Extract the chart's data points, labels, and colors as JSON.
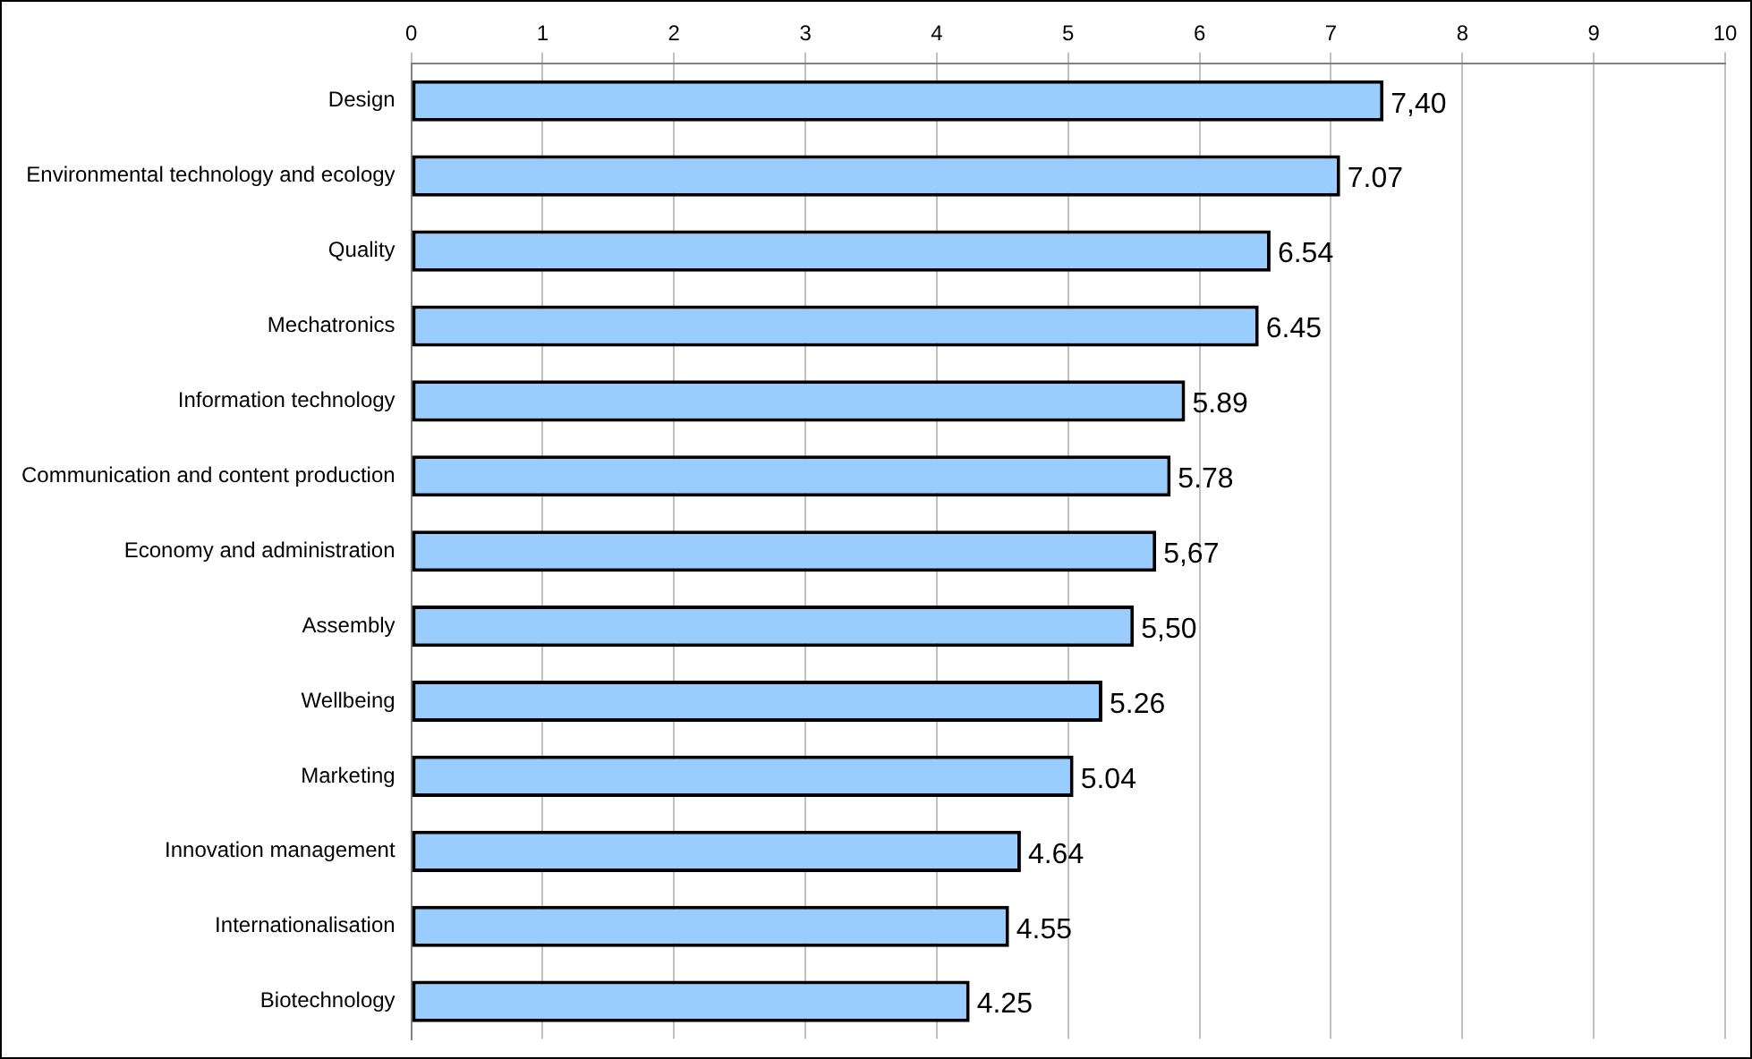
{
  "chart_data": {
    "type": "bar",
    "orientation": "horizontal",
    "categories": [
      "Design",
      "Environmental technology and ecology",
      "Quality",
      "Mechatronics",
      "Information technology",
      "Communication and content production",
      "Economy and administration",
      "Assembly",
      "Wellbeing",
      "Marketing",
      "Innovation management",
      "Internationalisation",
      "Biotechnology"
    ],
    "values": [
      7.4,
      7.07,
      6.54,
      6.45,
      5.89,
      5.78,
      5.67,
      5.5,
      5.26,
      5.04,
      4.64,
      4.55,
      4.25
    ],
    "value_labels": [
      "7,40",
      "7.07",
      "6.54",
      "6.45",
      "5.89",
      "5.78",
      "5,67",
      "5,50",
      "5.26",
      "5.04",
      "4.64",
      "4.55",
      "4.25"
    ],
    "color": "#99ccff",
    "xlim": [
      0,
      10
    ],
    "xticks": [
      0,
      1,
      2,
      3,
      4,
      5,
      6,
      7,
      8,
      9,
      10
    ],
    "grid": "x",
    "legend": false
  }
}
